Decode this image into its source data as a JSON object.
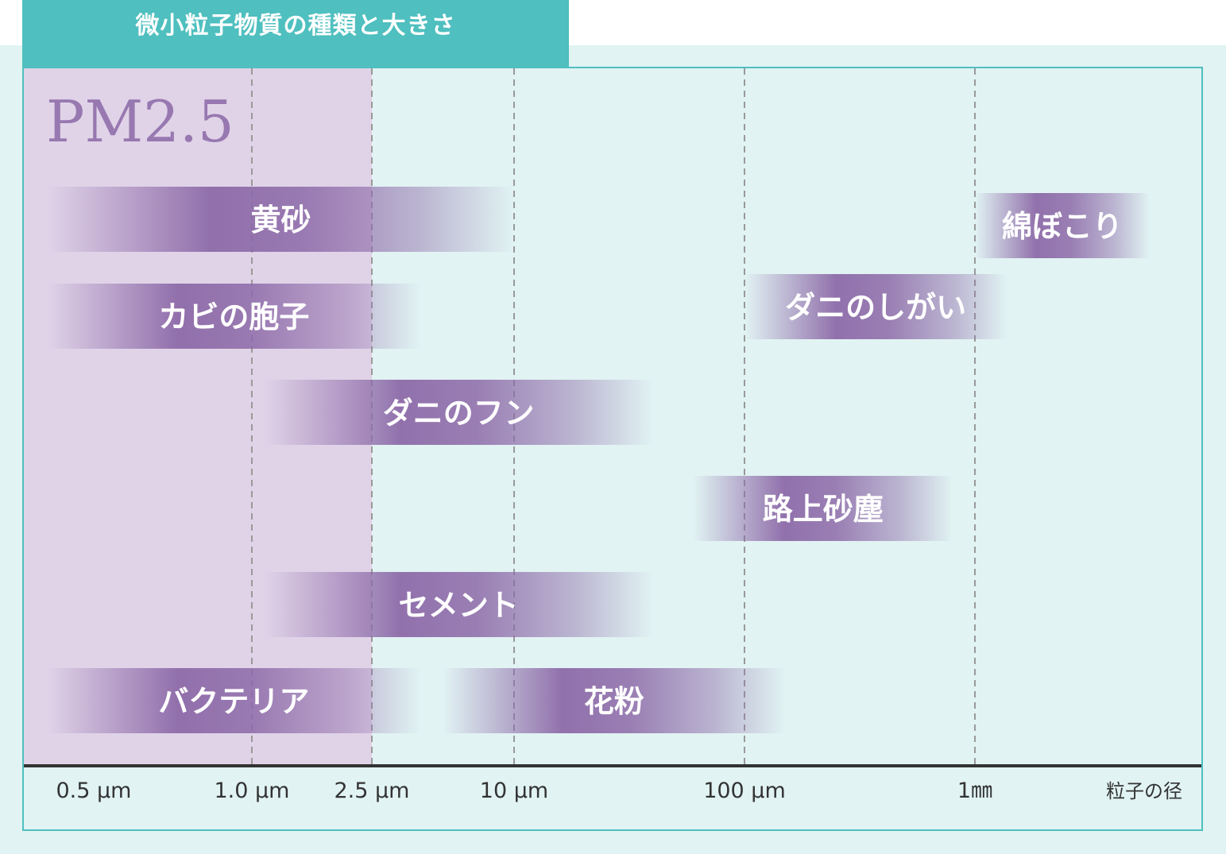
{
  "title": "微小粒子物質の種類と大きさ",
  "colors": {
    "teal": "#4fbfbf",
    "background": "#e1f3f3",
    "pm_region": "#e0d3e8",
    "bar_purple": "#8d6aa8",
    "grid_line": "#999999",
    "axis_line": "#333333"
  },
  "chart_data": {
    "type": "range-bar",
    "x_scale": "log",
    "x_unit_label": "粒子の径",
    "x_ticks": [
      {
        "value": 0.5,
        "label": "0.5 μm"
      },
      {
        "value": 1.0,
        "label": "1.0 μm"
      },
      {
        "value": 2.5,
        "label": "2.5 μm"
      },
      {
        "value": 10,
        "label": "10 μm"
      },
      {
        "value": 100,
        "label": "100 μm"
      },
      {
        "value": 1000,
        "label": "1㎜"
      }
    ],
    "highlight_region": {
      "label": "PM2.5",
      "from": 0.4,
      "to": 2.5
    },
    "series": [
      {
        "name": "黄砂",
        "from": 0.4,
        "to": 10
      },
      {
        "name": "カビの胞子",
        "from": 0.4,
        "to": 4
      },
      {
        "name": "ダニのフン",
        "from": 1.1,
        "to": 40
      },
      {
        "name": "路上砂塵",
        "from": 60,
        "to": 800
      },
      {
        "name": "セメント",
        "from": 1.1,
        "to": 40
      },
      {
        "name": "バクテリア",
        "from": 0.4,
        "to": 4
      },
      {
        "name": "花粉",
        "from": 5,
        "to": 150
      },
      {
        "name": "綿ぼこり",
        "from": 1000,
        "to": 2700
      },
      {
        "name": "ダニのしがい",
        "from": 100,
        "to": 1200
      }
    ]
  }
}
